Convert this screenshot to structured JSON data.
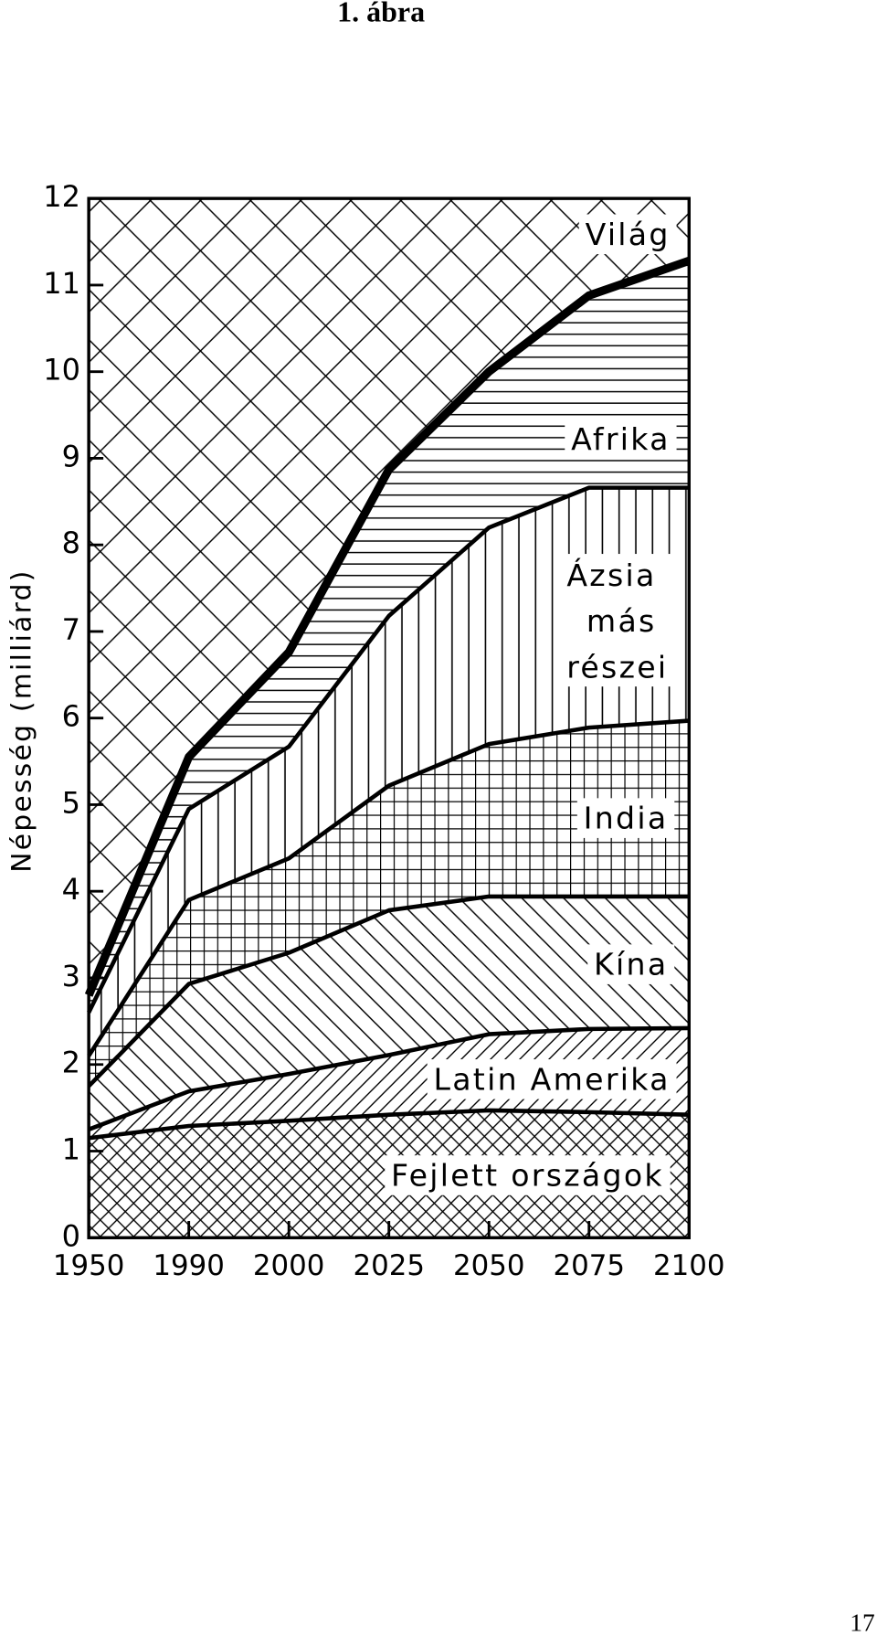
{
  "header": "1. ábra",
  "page_number": "17",
  "chart_data": {
    "type": "stacked_area",
    "y_label": "Népesség (milliárd)",
    "categories": [
      "1950",
      "1990",
      "2000",
      "2025",
      "2050",
      "2075",
      "2100"
    ],
    "ylim": [
      0,
      12
    ],
    "yticks": [
      0,
      1,
      2,
      3,
      4,
      5,
      6,
      7,
      8,
      9,
      10,
      11,
      12
    ],
    "total_label": "Világ",
    "total_hatch": "cross-large",
    "series": [
      {
        "name": "Fejlett országok",
        "color": "#000000",
        "hatch": "cross-fine",
        "values": [
          1.15,
          1.29,
          1.35,
          1.42,
          1.47,
          1.45,
          1.42
        ]
      },
      {
        "name": "Latin Amerika",
        "color": "#000000",
        "hatch": "diag-up",
        "values": [
          0.1,
          0.4,
          0.54,
          0.69,
          0.88,
          0.96,
          1.0
        ]
      },
      {
        "name": "Kína",
        "color": "#000000",
        "hatch": "diag-down",
        "values": [
          0.5,
          1.24,
          1.4,
          1.67,
          1.59,
          1.53,
          1.52
        ]
      },
      {
        "name": "India",
        "color": "#000000",
        "hatch": "grid",
        "values": [
          0.35,
          0.97,
          1.09,
          1.44,
          1.76,
          1.95,
          2.03
        ]
      },
      {
        "name": "Ázsia más részei",
        "color": "#000000",
        "hatch": "vertical",
        "values": [
          0.5,
          1.05,
          1.29,
          1.96,
          2.5,
          2.77,
          2.69
        ]
      },
      {
        "name": "Afrika",
        "color": "#000000",
        "hatch": "horizontal",
        "values": [
          0.2,
          0.6,
          1.09,
          1.69,
          1.8,
          2.22,
          2.62
        ]
      }
    ]
  }
}
